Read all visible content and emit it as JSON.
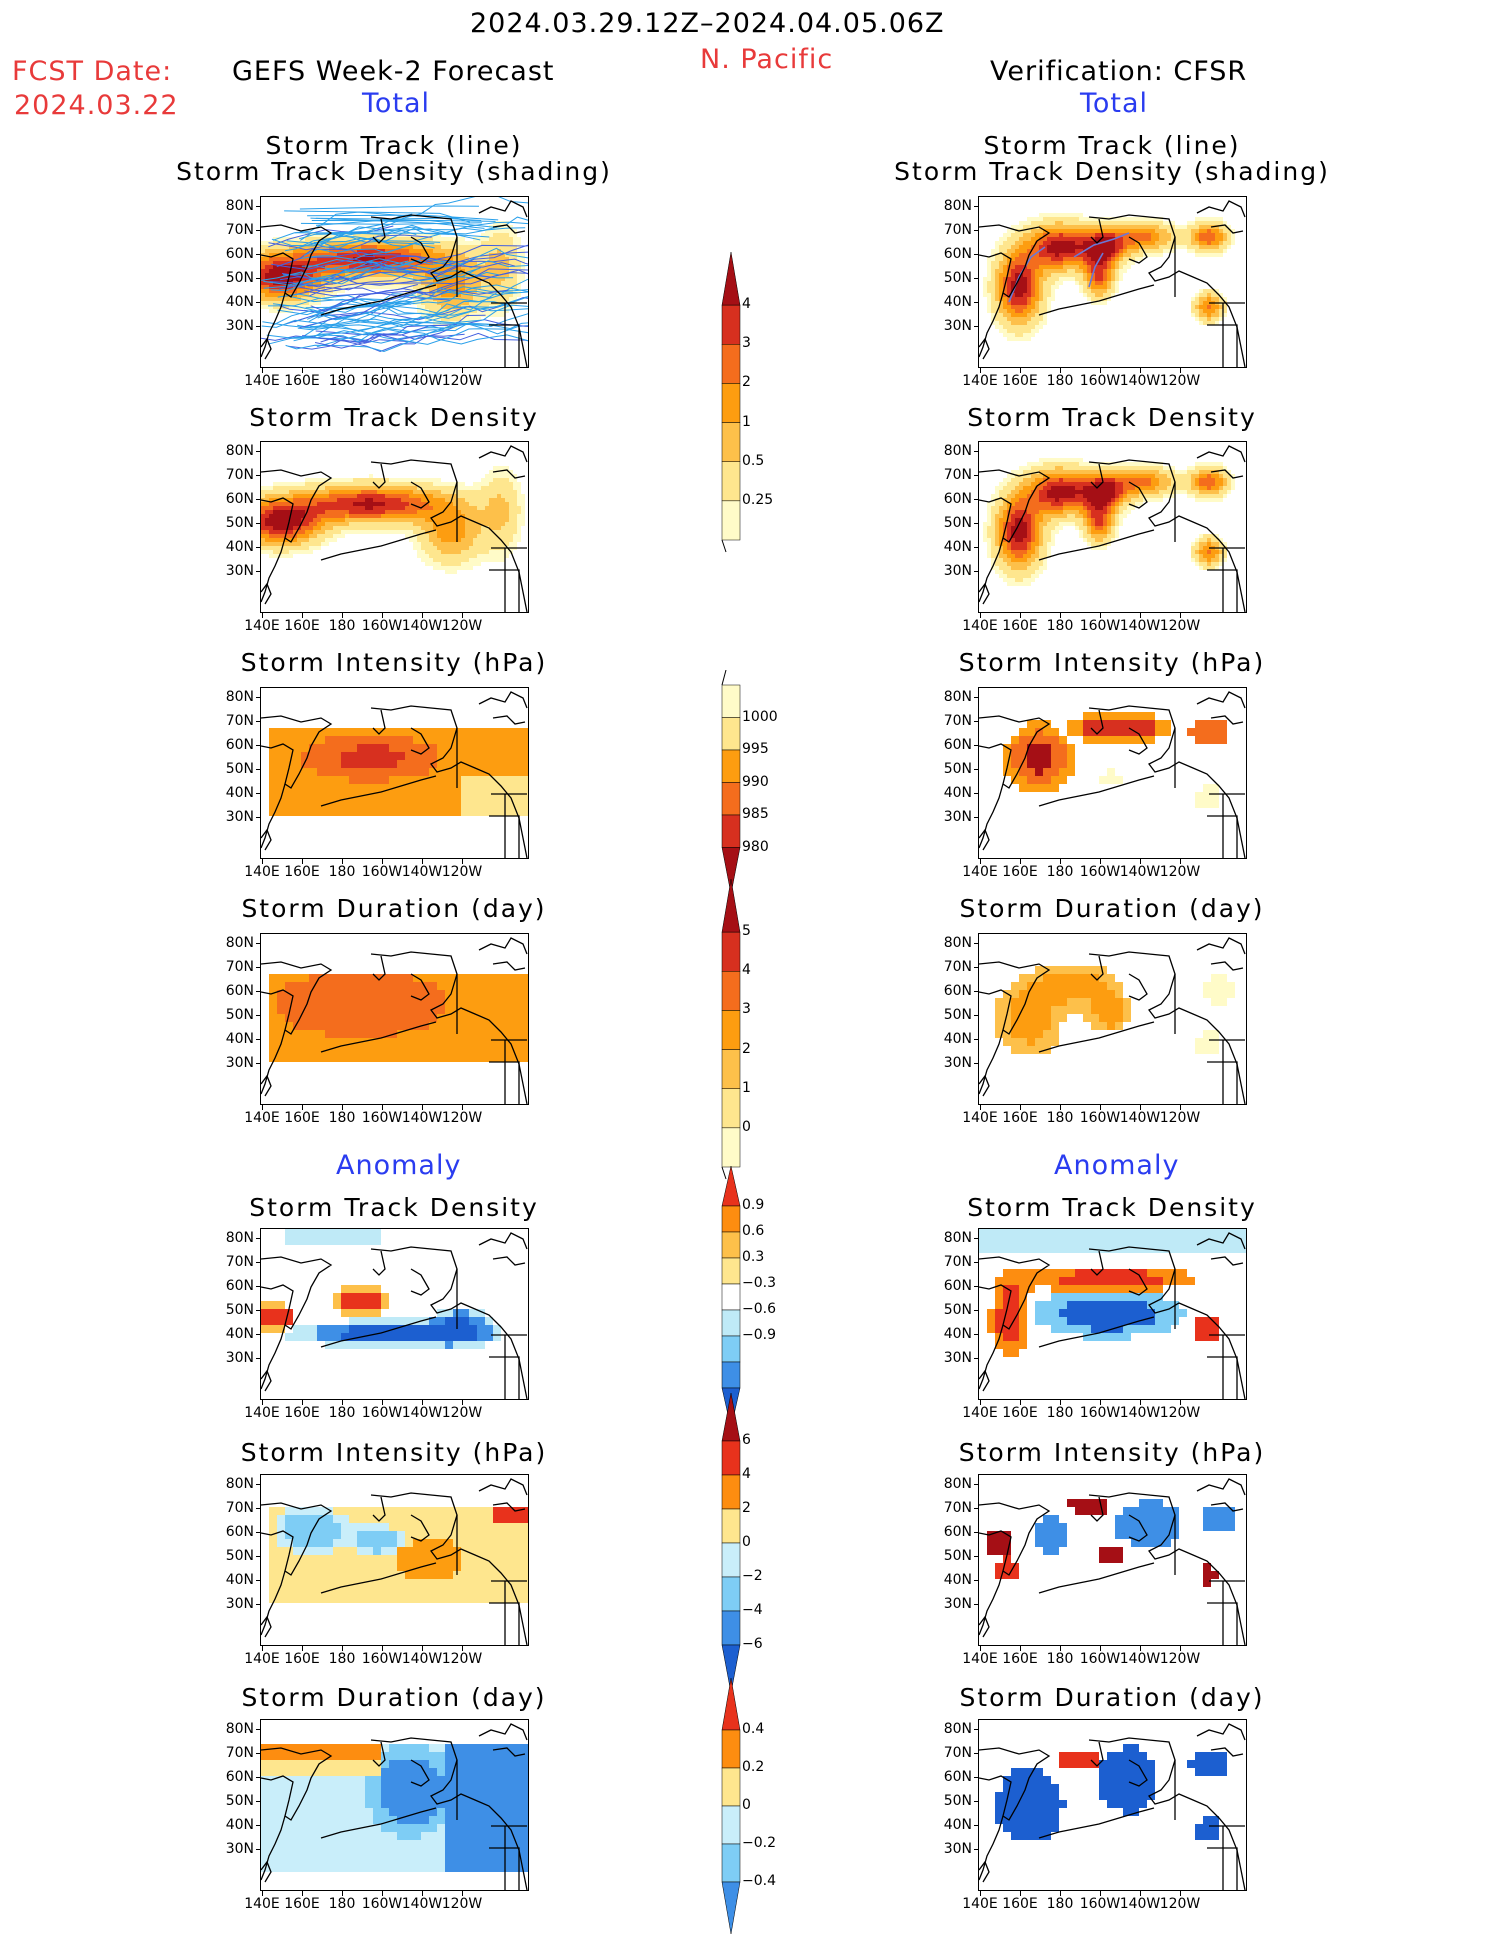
{
  "header": {
    "period": "2024.03.29.12Z–2024.04.05.06Z",
    "region": "N. Pacific",
    "fcst_label": "FCST Date:",
    "fcst_date": "2024.03.22",
    "left_title": "GEFS Week-2 Forecast",
    "right_title": "Verification: CFSR",
    "total_label": "Total",
    "anomaly_label": "Anomaly"
  },
  "axes": {
    "lat_ticks": [
      "80N",
      "70N",
      "60N",
      "50N",
      "40N",
      "30N"
    ],
    "lon_ticks": [
      "140E",
      "160E",
      "180",
      "160W",
      "140W",
      "120W"
    ]
  },
  "panel_titles": {
    "track_line": "Storm Track (line)",
    "track_shading": "Storm Track Density (shading)",
    "density": "Storm Track Density",
    "intensity": "Storm Intensity (hPa)",
    "duration": "Storm Duration (day)"
  },
  "colorbars": {
    "density_total": {
      "labels": [
        "4",
        "3",
        "2",
        "1",
        "0.5",
        "0.25"
      ],
      "colors": [
        "#a50f15",
        "#d7301f",
        "#f46d1d",
        "#fd9d10",
        "#fdc04a",
        "#fee68e",
        "#fffbc8"
      ]
    },
    "intensity_total": {
      "labels": [
        "1000",
        "995",
        "990",
        "985",
        "980"
      ],
      "colors": [
        "#fffbc8",
        "#fee68e",
        "#fd9d10",
        "#f46d1d",
        "#d7301f",
        "#a50f15"
      ]
    },
    "duration_total": {
      "labels": [
        "5",
        "4",
        "3",
        "2",
        "1",
        "0"
      ],
      "colors": [
        "#a50f15",
        "#d7301f",
        "#f46d1d",
        "#fd9d10",
        "#fdc04a",
        "#fee68e",
        "#fffbc8"
      ]
    },
    "density_anom": {
      "labels": [
        "0.9",
        "0.6",
        "0.3",
        "−0.3",
        "−0.6",
        "−0.9"
      ],
      "colors": [
        "#e8321c",
        "#fd8d10",
        "#fdc04a",
        "#fee68e",
        "#ffffff",
        "#bfeaf7",
        "#7ecdf5",
        "#3e8fe6",
        "#1c5fd0"
      ]
    },
    "intensity_anom": {
      "labels": [
        "6",
        "4",
        "2",
        "0",
        "−2",
        "−4",
        "−6"
      ],
      "colors": [
        "#a50f15",
        "#e8321c",
        "#fd8d10",
        "#fee68e",
        "#c9eefa",
        "#7ecdf5",
        "#3e8fe6",
        "#1c5fd0"
      ]
    },
    "duration_anom": {
      "labels": [
        "0.4",
        "0.2",
        "0",
        "−0.2",
        "−0.4"
      ],
      "colors": [
        "#e8321c",
        "#fd8d10",
        "#fee68e",
        "#c9eefa",
        "#7ecdf5",
        "#3e8fe6"
      ]
    }
  }
}
